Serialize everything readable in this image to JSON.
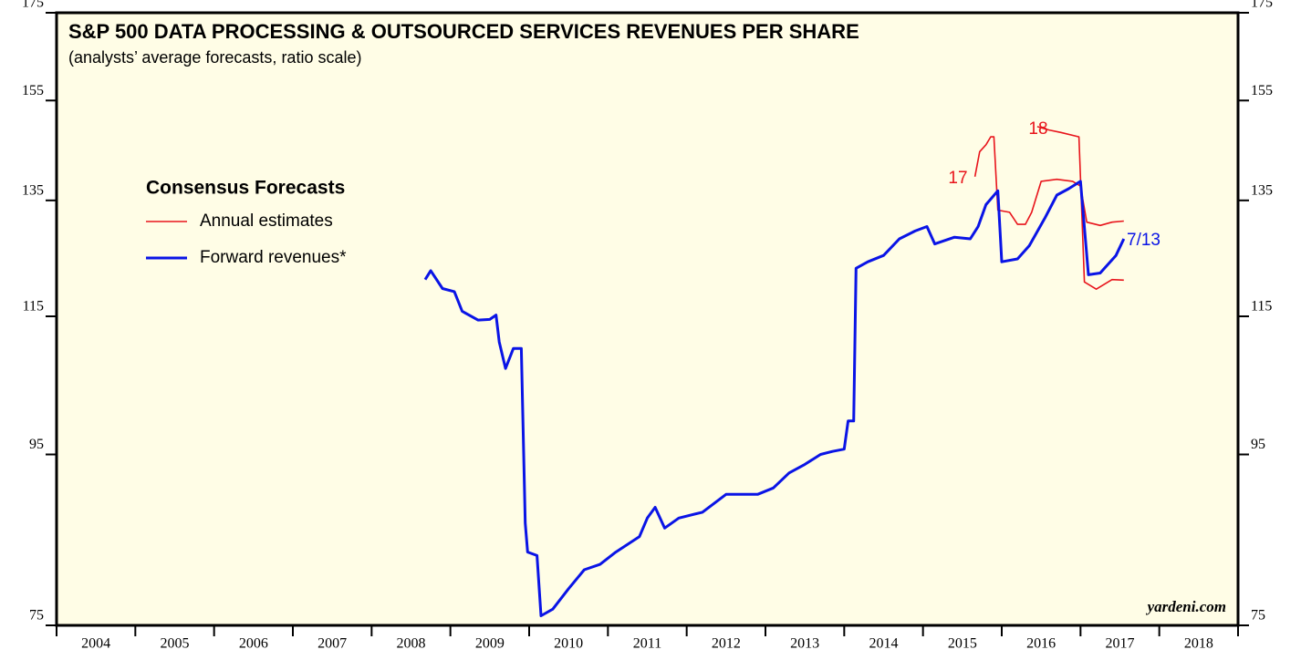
{
  "chart_data": {
    "type": "line",
    "title": "S&P 500 DATA PROCESSING & OUTSOURCED SERVICES REVENUES PER SHARE",
    "subtitle": "(analysts’ average forecasts, ratio scale)",
    "legend_title": "Consensus Forecasts",
    "legend": "upper left",
    "ylog": true,
    "ylim": [
      75,
      175
    ],
    "yticks": [
      75,
      95,
      115,
      135,
      155,
      175
    ],
    "xlim": [
      2004,
      2019
    ],
    "xticks": [
      2004,
      2005,
      2006,
      2007,
      2008,
      2009,
      2010,
      2011,
      2012,
      2013,
      2014,
      2015,
      2016,
      2017,
      2018,
      2019
    ],
    "categories": [
      "2004",
      "2005",
      "2006",
      "2007",
      "2008",
      "2009",
      "2010",
      "2011",
      "2012",
      "2013",
      "2014",
      "2015",
      "2016",
      "2017",
      "2018"
    ],
    "annotations": [
      "17",
      "18",
      "7/13"
    ],
    "source": "yardeni.com",
    "series": [
      {
        "name": "Annual estimates",
        "color": "#e8141b",
        "x": [
          2015.66,
          2015.72,
          2015.8,
          2015.86,
          2015.9,
          2015.95,
          2016.1,
          2016.2,
          2016.3,
          2016.38,
          2016.5,
          2016.7,
          2016.9,
          2017.0,
          2017.08,
          2017.25,
          2017.4,
          2017.55,
          null,
          2016.45,
          2016.6,
          2016.75,
          2016.98,
          2017.05,
          2017.2,
          2017.4,
          2017.55
        ],
        "values": [
          139.5,
          144.4,
          145.8,
          147.4,
          147.4,
          133.2,
          132.8,
          130.6,
          130.6,
          132.8,
          138.6,
          139,
          138.6,
          137.7,
          131,
          130.4,
          131,
          131.2,
          null,
          149.5,
          148.8,
          148.3,
          147.4,
          120.6,
          119.4,
          121,
          120.9
        ]
      },
      {
        "name": "Forward revenues*",
        "color": "#0a14e6",
        "x": [
          2008.68,
          2008.75,
          2008.9,
          2009.05,
          2009.15,
          2009.35,
          2009.5,
          2009.58,
          2009.62,
          2009.7,
          2009.8,
          2009.9,
          2009.95,
          2009.98,
          2010.1,
          2010.15,
          2010.3,
          2010.5,
          2010.7,
          2010.9,
          2011.1,
          2011.4,
          2011.5,
          2011.6,
          2011.72,
          2011.9,
          2012.2,
          2012.5,
          2012.9,
          2013.1,
          2013.3,
          2013.5,
          2013.7,
          2013.85,
          2014.0,
          2014.05,
          2014.12,
          2014.15,
          2014.3,
          2014.5,
          2014.7,
          2014.9,
          2015.05,
          2015.15,
          2015.4,
          2015.6,
          2015.7,
          2015.8,
          2015.95,
          2016.0,
          2016.2,
          2016.35,
          2016.55,
          2016.7,
          2016.85,
          2017.0,
          2017.1,
          2017.25,
          2017.45,
          2017.55
        ],
        "values": [
          121,
          122.5,
          119.5,
          119,
          115.8,
          114.4,
          114.5,
          115.2,
          111,
          107,
          110,
          110,
          86.4,
          83,
          82.6,
          76,
          76.7,
          78.9,
          81,
          81.6,
          83,
          84.8,
          87,
          88.3,
          85.8,
          87,
          87.7,
          89.9,
          89.9,
          90.7,
          92.6,
          93.7,
          95,
          95.4,
          95.7,
          99.5,
          99.5,
          122.9,
          124,
          125.1,
          128,
          129.4,
          130.2,
          127.1,
          128.3,
          128,
          130.2,
          134.2,
          136.8,
          124,
          124.5,
          126.8,
          131.8,
          136,
          137.2,
          138.6,
          121.8,
          122.1,
          125.1,
          128
        ]
      }
    ]
  }
}
